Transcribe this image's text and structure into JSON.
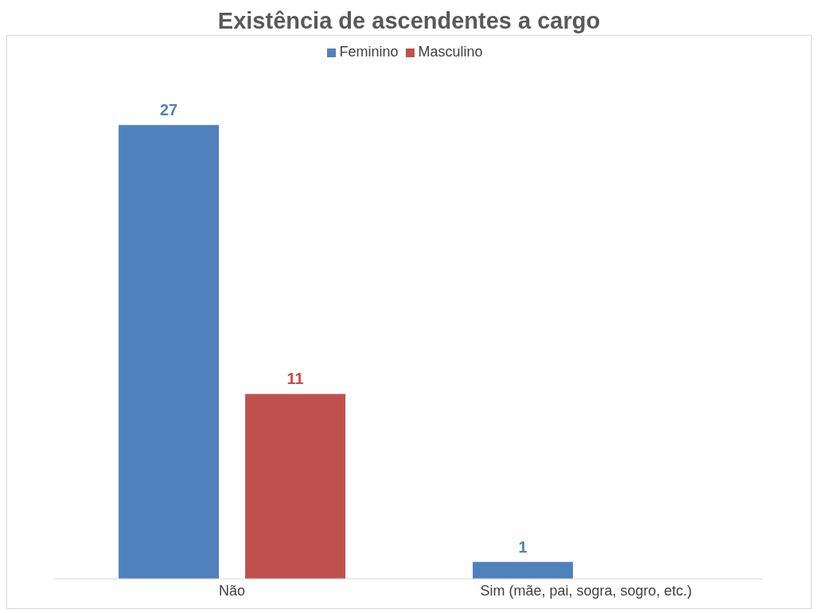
{
  "chart_data": {
    "type": "bar",
    "title": "Existência de ascendentes a cargo",
    "categories": [
      "Não",
      "Sim (mãe, pai, sogra, sogro, etc.)"
    ],
    "series": [
      {
        "name": "Feminino",
        "color": "#4f81bd",
        "values": [
          27,
          1
        ]
      },
      {
        "name": "Masculino",
        "color": "#c0504d",
        "values": [
          11,
          null
        ]
      }
    ],
    "data_labels": true,
    "legend": "top",
    "grid": false
  }
}
